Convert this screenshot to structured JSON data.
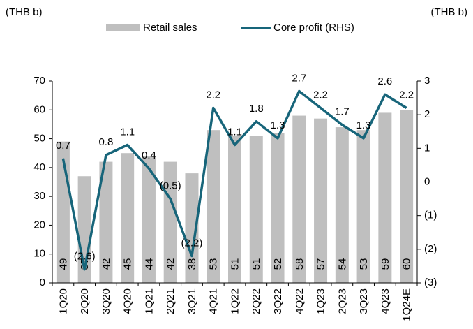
{
  "chart_data": {
    "type": "bar_line",
    "y_label": "(THB b)",
    "y2_label": "(THB b)",
    "categories": [
      "1Q20",
      "2Q20",
      "3Q20",
      "4Q20",
      "1Q21",
      "2Q21",
      "3Q21",
      "4Q21",
      "1Q22",
      "2Q22",
      "3Q22",
      "4Q22",
      "1Q23",
      "2Q23",
      "3Q23",
      "4Q23",
      "1Q24E"
    ],
    "series": [
      {
        "name": "Retail sales",
        "type": "bar",
        "color": "#bfbfbf",
        "values": [
          49,
          37,
          42,
          45,
          44,
          42,
          38,
          53,
          51,
          51,
          52,
          58,
          57,
          54,
          53,
          59,
          60
        ]
      },
      {
        "name": "Core profit (RHS)",
        "type": "line",
        "axis": "y2",
        "color": "#17657a",
        "values": [
          0.7,
          -2.6,
          0.8,
          1.1,
          0.4,
          -0.5,
          -2.2,
          2.2,
          1.1,
          1.8,
          1.3,
          2.7,
          2.2,
          1.7,
          1.3,
          2.6,
          2.2
        ],
        "value_labels": [
          "0.7",
          "(2.6)",
          "0.8",
          "1.1",
          "0.4",
          "(0.5)",
          "(2.2)",
          "2.2",
          "1.1",
          "1.8",
          "1.3",
          "2.7",
          "2.2",
          "1.7",
          "1.3",
          "2.6",
          "2.2"
        ]
      }
    ],
    "ylim": [
      0,
      70
    ],
    "yticks": [
      0,
      10,
      20,
      30,
      40,
      50,
      60,
      70
    ],
    "y2lim": [
      -3,
      3
    ],
    "y2ticks": [
      {
        "value": -3,
        "label": "(3)"
      },
      {
        "value": -2,
        "label": "(2)"
      },
      {
        "value": -1,
        "label": "(1)"
      },
      0,
      1,
      2,
      3
    ],
    "legend": "top",
    "grid": false
  }
}
